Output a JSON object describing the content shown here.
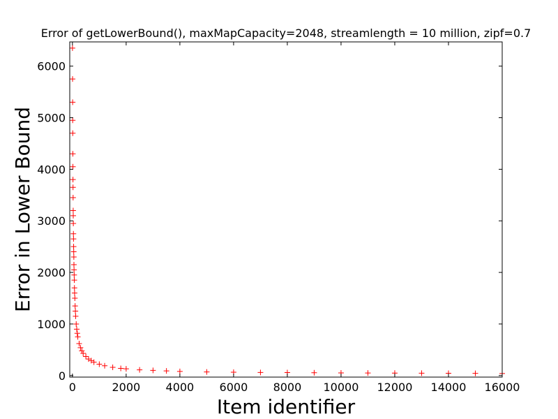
{
  "chart_data": {
    "type": "scatter",
    "title": "Error of getLowerBound(), maxMapCapacity=2048, streamlength = 10 million, zipf=0.7",
    "x_label": "Item identifier",
    "y_label": "Error in Lower Bound",
    "marker": "+",
    "color": "#ff0000",
    "x": [
      2,
      5,
      8,
      10,
      12,
      15,
      18,
      20,
      22,
      25,
      28,
      30,
      33,
      36,
      40,
      44,
      48,
      52,
      56,
      60,
      65,
      70,
      75,
      80,
      90,
      100,
      110,
      120,
      140,
      160,
      180,
      200,
      250,
      300,
      350,
      400,
      500,
      600,
      700,
      800,
      1000,
      1200,
      1500,
      1800,
      2000,
      2500,
      3000,
      3500,
      4000,
      5000,
      6000,
      7000,
      8000,
      9000,
      10000,
      11000,
      12000,
      13000,
      14000,
      15000,
      16000
    ],
    "values": [
      6350,
      5750,
      5300,
      4950,
      4700,
      4300,
      4050,
      3800,
      3650,
      3450,
      3200,
      3100,
      2950,
      2750,
      2650,
      2500,
      2400,
      2300,
      2150,
      2050,
      1950,
      1850,
      1700,
      1600,
      1500,
      1350,
      1250,
      1150,
      1000,
      900,
      820,
      750,
      620,
      540,
      480,
      430,
      370,
      320,
      290,
      260,
      220,
      190,
      160,
      140,
      130,
      110,
      100,
      90,
      80,
      70,
      65,
      60,
      58,
      55,
      52,
      50,
      48,
      46,
      44,
      42,
      40
    ],
    "xlim": [
      -100,
      16000
    ],
    "ylim": [
      -30,
      6470
    ],
    "xticks": [
      0,
      2000,
      4000,
      6000,
      8000,
      10000,
      12000,
      14000,
      16000
    ],
    "yticks": [
      0,
      1000,
      2000,
      3000,
      4000,
      5000,
      6000
    ]
  }
}
